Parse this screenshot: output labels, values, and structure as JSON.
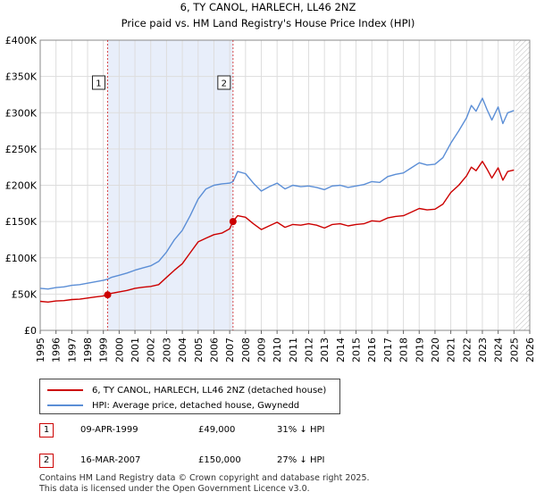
{
  "chart_data": {
    "type": "line",
    "title": "6, TY CANOL, HARLECH, LL46 2NZ",
    "subtitle": "Price paid vs. HM Land Registry's House Price Index (HPI)",
    "x_range": [
      1995,
      2026
    ],
    "ylim": [
      0,
      400000
    ],
    "yticks": [
      0,
      50000,
      100000,
      150000,
      200000,
      250000,
      300000,
      350000,
      400000
    ],
    "ytick_labels": [
      "£0",
      "£50K",
      "£100K",
      "£150K",
      "£200K",
      "£250K",
      "£300K",
      "£350K",
      "£400K"
    ],
    "xticks": [
      1995,
      1996,
      1997,
      1998,
      1999,
      2000,
      2001,
      2002,
      2003,
      2004,
      2005,
      2006,
      2007,
      2008,
      2009,
      2010,
      2011,
      2012,
      2013,
      2014,
      2015,
      2016,
      2017,
      2018,
      2019,
      2020,
      2021,
      2022,
      2023,
      2024,
      2025,
      2026
    ],
    "grid": true,
    "shaded_period": [
      1999.27,
      2007.21
    ],
    "future_hatch_from": 2025.1,
    "series": [
      {
        "name": "6, TY CANOL, HARLECH, LL46 2NZ (detached house)",
        "color": "#cc0000",
        "x": [
          1995,
          1995.5,
          1996,
          1996.5,
          1997,
          1997.5,
          1998,
          1998.5,
          1999,
          1999.27,
          1999.5,
          2000,
          2000.5,
          2001,
          2001.5,
          2002,
          2002.5,
          2003,
          2003.5,
          2004,
          2004.5,
          2005,
          2005.5,
          2006,
          2006.5,
          2007,
          2007.21,
          2007.5,
          2008,
          2008.5,
          2009,
          2009.5,
          2010,
          2010.5,
          2011,
          2011.5,
          2012,
          2012.5,
          2013,
          2013.5,
          2014,
          2014.5,
          2015,
          2015.5,
          2016,
          2016.5,
          2017,
          2017.5,
          2018,
          2018.5,
          2019,
          2019.5,
          2020,
          2020.5,
          2021,
          2021.5,
          2022,
          2022.3,
          2022.6,
          2023,
          2023.3,
          2023.6,
          2024,
          2024.3,
          2024.6,
          2025
        ],
        "y": [
          40000,
          39000,
          40500,
          41000,
          42500,
          43000,
          44500,
          46000,
          47500,
          49000,
          51000,
          53000,
          55000,
          58000,
          59500,
          60500,
          63000,
          73000,
          83000,
          92000,
          107000,
          122000,
          127000,
          132000,
          134000,
          140000,
          150000,
          158000,
          156000,
          147000,
          139000,
          144000,
          149000,
          142000,
          146000,
          145000,
          147000,
          145000,
          141000,
          146000,
          147000,
          144000,
          146000,
          147000,
          151000,
          150000,
          155000,
          157000,
          158000,
          163000,
          168000,
          166000,
          167000,
          174000,
          190000,
          200000,
          213000,
          225000,
          220000,
          233000,
          222000,
          210000,
          224000,
          207000,
          219000,
          221000
        ]
      },
      {
        "name": "HPI: Average price, detached house, Gwynedd",
        "color": "#5b8ed6",
        "x": [
          1995,
          1995.5,
          1996,
          1996.5,
          1997,
          1997.5,
          1998,
          1998.5,
          1999,
          1999.27,
          1999.5,
          2000,
          2000.5,
          2001,
          2001.5,
          2002,
          2002.5,
          2003,
          2003.5,
          2004,
          2004.5,
          2005,
          2005.5,
          2006,
          2006.5,
          2007,
          2007.21,
          2007.5,
          2008,
          2008.5,
          2009,
          2009.5,
          2010,
          2010.5,
          2011,
          2011.5,
          2012,
          2012.5,
          2013,
          2013.5,
          2014,
          2014.5,
          2015,
          2015.5,
          2016,
          2016.5,
          2017,
          2017.5,
          2018,
          2018.5,
          2019,
          2019.5,
          2020,
          2020.5,
          2021,
          2021.5,
          2022,
          2022.3,
          2022.6,
          2023,
          2023.3,
          2023.6,
          2024,
          2024.3,
          2024.6,
          2025
        ],
        "y": [
          58000,
          57000,
          59000,
          60000,
          62000,
          63000,
          65000,
          67000,
          69000,
          70500,
          73000,
          76000,
          79000,
          83000,
          86000,
          89000,
          95000,
          108000,
          125000,
          138000,
          158000,
          181000,
          195000,
          200000,
          202000,
          203000,
          205000,
          219000,
          216000,
          203000,
          192000,
          198000,
          203000,
          195000,
          200000,
          198000,
          199000,
          197000,
          194000,
          199000,
          200000,
          197000,
          199000,
          201000,
          205000,
          204000,
          212000,
          215000,
          217000,
          224000,
          231000,
          228000,
          229000,
          238000,
          258000,
          275000,
          293000,
          310000,
          302000,
          320000,
          304000,
          290000,
          308000,
          285000,
          300000,
          303000
        ]
      }
    ],
    "sales": [
      {
        "id": "1",
        "date": "09-APR-1999",
        "x": 1999.27,
        "price": 49000,
        "price_label": "£49,000",
        "hpi_diff": "31% ↓ HPI"
      },
      {
        "id": "2",
        "date": "16-MAR-2007",
        "x": 2007.21,
        "price": 150000,
        "price_label": "£150,000",
        "hpi_diff": "27% ↓ HPI"
      }
    ]
  },
  "legend": {
    "property_label": "6, TY CANOL, HARLECH, LL46 2NZ (detached house)",
    "hpi_label": "HPI: Average price, detached house, Gwynedd",
    "property_color": "#cc0000",
    "hpi_color": "#5b8ed6"
  },
  "footer": {
    "line1": "Contains HM Land Registry data © Crown copyright and database right 2025.",
    "line2": "This data is licensed under the Open Government Licence v3.0."
  }
}
